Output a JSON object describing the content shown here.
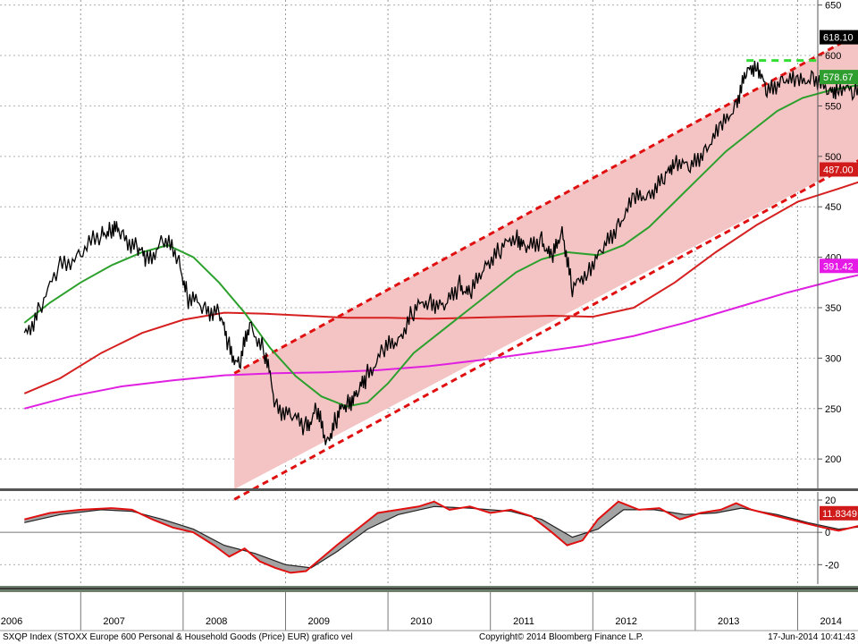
{
  "chart_data": {
    "type": "line",
    "title": "SXQP Index (STOXX Europe 600 Personal & Household Goods (Price) EUR) grafico vel",
    "copyright": "Copyright© 2014 Bloomberg Finance L.P.",
    "timestamp": "17-Jun-2014 10:41:43",
    "x_ticks": [
      "2006",
      "2007",
      "2008",
      "2009",
      "2010",
      "2011",
      "2012",
      "2013",
      "2014"
    ],
    "price_panel": {
      "ylim": [
        170,
        655
      ],
      "y_ticks": [
        200,
        250,
        300,
        350,
        400,
        450,
        500,
        550,
        600,
        650
      ],
      "last_value_labels": [
        {
          "series": "price",
          "text": "618.10",
          "value": 618.1,
          "bg": "#000000",
          "fg": "#ffffff"
        },
        {
          "series": "ma50",
          "text": "578.67",
          "value": 578.67,
          "bg": "#2e9e2e",
          "fg": "#ffffff"
        },
        {
          "series": "ma200",
          "text": "487.00",
          "value": 487.0,
          "bg": "#d11a1a",
          "fg": "#ffffff"
        },
        {
          "series": "ma_long",
          "text": "391.42",
          "value": 391.42,
          "bg": "#e61ae6",
          "fg": "#ffffff"
        }
      ],
      "resistance_level": 595,
      "colors": {
        "price": "#000000",
        "ma50": "#2ca02c",
        "ma200": "#d62020",
        "ma_long": "#e020e0",
        "channel_line": "#e01010",
        "channel_fill": "#f4c4c4",
        "resistance": "#33dd33"
      },
      "price_points": [
        [
          2005.95,
          320
        ],
        [
          2006.1,
          350
        ],
        [
          2006.3,
          390
        ],
        [
          2006.5,
          405
        ],
        [
          2006.7,
          422
        ],
        [
          2006.8,
          430
        ],
        [
          2006.9,
          422
        ],
        [
          2007.05,
          410
        ],
        [
          2007.15,
          395
        ],
        [
          2007.3,
          418
        ],
        [
          2007.45,
          400
        ],
        [
          2007.55,
          360
        ],
        [
          2007.7,
          350
        ],
        [
          2007.85,
          345
        ],
        [
          2007.95,
          310
        ],
        [
          2008.05,
          292
        ],
        [
          2008.15,
          335
        ],
        [
          2008.3,
          305
        ],
        [
          2008.4,
          255
        ],
        [
          2008.55,
          242
        ],
        [
          2008.7,
          232
        ],
        [
          2008.8,
          248
        ],
        [
          2008.9,
          218
        ],
        [
          2009.0,
          240
        ],
        [
          2009.1,
          258
        ],
        [
          2009.2,
          262
        ],
        [
          2009.3,
          285
        ],
        [
          2009.45,
          305
        ],
        [
          2009.6,
          320
        ],
        [
          2009.75,
          345
        ],
        [
          2009.9,
          360
        ],
        [
          2010.05,
          348
        ],
        [
          2010.2,
          375
        ],
        [
          2010.3,
          360
        ],
        [
          2010.45,
          395
        ],
        [
          2010.6,
          405
        ],
        [
          2010.75,
          425
        ],
        [
          2010.85,
          405
        ],
        [
          2011.0,
          420
        ],
        [
          2011.1,
          395
        ],
        [
          2011.2,
          430
        ],
        [
          2011.3,
          365
        ],
        [
          2011.45,
          390
        ],
        [
          2011.6,
          405
        ],
        [
          2011.75,
          435
        ],
        [
          2011.9,
          455
        ],
        [
          2012.05,
          465
        ],
        [
          2012.2,
          475
        ],
        [
          2012.3,
          500
        ],
        [
          2012.45,
          485
        ],
        [
          2012.6,
          510
        ],
        [
          2012.75,
          525
        ],
        [
          2012.9,
          555
        ],
        [
          2013.0,
          580
        ],
        [
          2013.1,
          595
        ],
        [
          2013.2,
          560
        ],
        [
          2013.35,
          580
        ],
        [
          2013.5,
          570
        ],
        [
          2013.65,
          582
        ],
        [
          2013.8,
          560
        ],
        [
          2013.9,
          572
        ],
        [
          2014.05,
          560
        ],
        [
          2014.2,
          575
        ],
        [
          2014.35,
          600
        ],
        [
          2014.45,
          618
        ]
      ],
      "ma50_points": [
        [
          2005.95,
          335
        ],
        [
          2006.2,
          355
        ],
        [
          2006.5,
          375
        ],
        [
          2006.8,
          392
        ],
        [
          2007.1,
          405
        ],
        [
          2007.35,
          412
        ],
        [
          2007.6,
          400
        ],
        [
          2007.85,
          375
        ],
        [
          2008.1,
          345
        ],
        [
          2008.35,
          310
        ],
        [
          2008.6,
          282
        ],
        [
          2008.85,
          262
        ],
        [
          2009.1,
          252
        ],
        [
          2009.3,
          256
        ],
        [
          2009.5,
          275
        ],
        [
          2009.75,
          305
        ],
        [
          2010.0,
          325
        ],
        [
          2010.25,
          345
        ],
        [
          2010.5,
          365
        ],
        [
          2010.75,
          385
        ],
        [
          2011.0,
          398
        ],
        [
          2011.25,
          405
        ],
        [
          2011.55,
          402
        ],
        [
          2011.8,
          412
        ],
        [
          2012.05,
          430
        ],
        [
          2012.3,
          455
        ],
        [
          2012.55,
          480
        ],
        [
          2012.8,
          505
        ],
        [
          2013.05,
          525
        ],
        [
          2013.3,
          545
        ],
        [
          2013.55,
          558
        ],
        [
          2013.8,
          565
        ],
        [
          2014.05,
          570
        ],
        [
          2014.3,
          572
        ],
        [
          2014.5,
          578.67
        ]
      ],
      "ma200_points": [
        [
          2005.95,
          265
        ],
        [
          2006.3,
          280
        ],
        [
          2006.7,
          305
        ],
        [
          2007.1,
          325
        ],
        [
          2007.5,
          338
        ],
        [
          2007.9,
          345
        ],
        [
          2008.3,
          344
        ],
        [
          2008.7,
          342
        ],
        [
          2009.1,
          340
        ],
        [
          2009.5,
          340
        ],
        [
          2009.9,
          339
        ],
        [
          2010.3,
          340
        ],
        [
          2010.7,
          341
        ],
        [
          2011.1,
          342
        ],
        [
          2011.5,
          341
        ],
        [
          2011.9,
          350
        ],
        [
          2012.3,
          375
        ],
        [
          2012.7,
          405
        ],
        [
          2013.1,
          432
        ],
        [
          2013.5,
          455
        ],
        [
          2013.9,
          468
        ],
        [
          2014.2,
          478
        ],
        [
          2014.5,
          487
        ]
      ],
      "ma_long_points": [
        [
          2005.95,
          250
        ],
        [
          2006.4,
          262
        ],
        [
          2006.9,
          272
        ],
        [
          2007.4,
          278
        ],
        [
          2007.9,
          283
        ],
        [
          2008.4,
          285
        ],
        [
          2008.9,
          286
        ],
        [
          2009.4,
          288
        ],
        [
          2009.9,
          292
        ],
        [
          2010.4,
          298
        ],
        [
          2010.9,
          305
        ],
        [
          2011.4,
          312
        ],
        [
          2011.9,
          322
        ],
        [
          2012.4,
          335
        ],
        [
          2012.9,
          350
        ],
        [
          2013.4,
          365
        ],
        [
          2013.9,
          378
        ],
        [
          2014.5,
          391.42
        ]
      ],
      "channel_upper": [
        [
          2008.0,
          285
        ],
        [
          2014.75,
          658
        ]
      ],
      "channel_lower": [
        [
          2008.0,
          160
        ],
        [
          2014.75,
          532
        ]
      ]
    },
    "oscillator_panel": {
      "ylim": [
        -32,
        25
      ],
      "y_ticks": [
        20,
        0,
        -20
      ],
      "last_value_label": {
        "text": "11.8349",
        "value": 11.8349,
        "bg": "#d11a1a",
        "fg": "#ffffff"
      },
      "colors": {
        "line": "#e01010",
        "signal": "#222222",
        "fill": "#999999"
      },
      "osc_points": [
        [
          2005.95,
          8
        ],
        [
          2006.2,
          12
        ],
        [
          2006.5,
          14
        ],
        [
          2006.8,
          15
        ],
        [
          2007.0,
          14
        ],
        [
          2007.2,
          8
        ],
        [
          2007.4,
          3
        ],
        [
          2007.6,
          0
        ],
        [
          2007.8,
          -8
        ],
        [
          2007.95,
          -15
        ],
        [
          2008.1,
          -10
        ],
        [
          2008.25,
          -18
        ],
        [
          2008.4,
          -22
        ],
        [
          2008.55,
          -25
        ],
        [
          2008.7,
          -24
        ],
        [
          2008.85,
          -16
        ],
        [
          2009.0,
          -8
        ],
        [
          2009.2,
          2
        ],
        [
          2009.4,
          12
        ],
        [
          2009.6,
          14
        ],
        [
          2009.8,
          16
        ],
        [
          2009.95,
          19
        ],
        [
          2010.1,
          14
        ],
        [
          2010.3,
          16
        ],
        [
          2010.5,
          12
        ],
        [
          2010.7,
          14
        ],
        [
          2010.9,
          10
        ],
        [
          2011.1,
          0
        ],
        [
          2011.25,
          -8
        ],
        [
          2011.4,
          -5
        ],
        [
          2011.55,
          8
        ],
        [
          2011.75,
          19
        ],
        [
          2011.95,
          14
        ],
        [
          2012.15,
          15
        ],
        [
          2012.35,
          8
        ],
        [
          2012.55,
          12
        ],
        [
          2012.75,
          14
        ],
        [
          2012.9,
          18
        ],
        [
          2013.05,
          14
        ],
        [
          2013.3,
          10
        ],
        [
          2013.55,
          6
        ],
        [
          2013.75,
          3
        ],
        [
          2013.9,
          1
        ],
        [
          2014.1,
          4
        ],
        [
          2014.3,
          8
        ],
        [
          2014.45,
          11.8
        ]
      ],
      "signal_points": [
        [
          2005.95,
          6
        ],
        [
          2006.3,
          11
        ],
        [
          2006.7,
          14
        ],
        [
          2007.0,
          13
        ],
        [
          2007.3,
          8
        ],
        [
          2007.6,
          2
        ],
        [
          2007.9,
          -8
        ],
        [
          2008.2,
          -13
        ],
        [
          2008.5,
          -20
        ],
        [
          2008.75,
          -22
        ],
        [
          2009.0,
          -12
        ],
        [
          2009.3,
          2
        ],
        [
          2009.6,
          11
        ],
        [
          2009.95,
          16
        ],
        [
          2010.3,
          15
        ],
        [
          2010.7,
          13
        ],
        [
          2011.0,
          8
        ],
        [
          2011.3,
          -3
        ],
        [
          2011.55,
          2
        ],
        [
          2011.8,
          14
        ],
        [
          2012.1,
          14
        ],
        [
          2012.4,
          11
        ],
        [
          2012.7,
          12
        ],
        [
          2012.95,
          15
        ],
        [
          2013.3,
          11
        ],
        [
          2013.6,
          6
        ],
        [
          2013.9,
          2
        ],
        [
          2014.2,
          4
        ],
        [
          2014.45,
          9
        ]
      ]
    }
  }
}
